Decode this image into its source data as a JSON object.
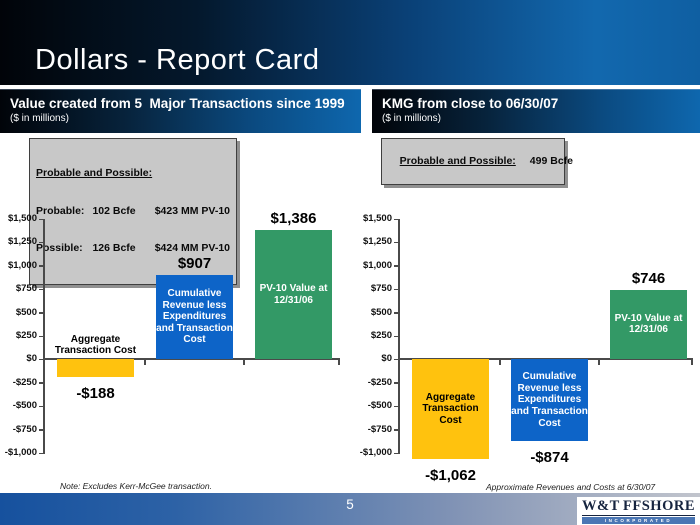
{
  "slide": {
    "title": "Dollars - Report Card",
    "page_number": "5"
  },
  "panels": [
    {
      "header": "Value created from 5  Major Transactions since 1999",
      "subheader": "($ in millions)",
      "info_box": {
        "title": "Probable and Possible:",
        "rows": [
          {
            "name": "Probable:",
            "volume": "102 Bcfe",
            "pv10": "$423 MM PV-10"
          },
          {
            "name": "Possible:",
            "volume": "126 Bcfe",
            "pv10": "$424 MM PV-10"
          }
        ]
      }
    },
    {
      "header": "KMG from close to 06/30/07",
      "subheader": "($ in millions)",
      "info_box": {
        "title": "Probable and Possible:",
        "value": "499 Bcfe"
      }
    }
  ],
  "chart_data": [
    {
      "type": "bar",
      "title": "Value created from 5 Major Transactions since 1999",
      "units": "$ in millions",
      "ylim": [
        -1000,
        1500
      ],
      "ytick_step": 250,
      "ytick_labels": [
        "$1,500",
        "$1,250",
        "$1,000",
        "$750",
        "$500",
        "$250",
        "$0",
        "-$250",
        "-$500",
        "-$750",
        "-$1,000"
      ],
      "grid": false,
      "legend": "none",
      "categories": [
        "Aggregate Transaction Cost",
        "Cumulative Revenue less Expenditures and Transaction Cost",
        "PV-10 Value at 12/31/06"
      ],
      "values": [
        -188,
        907,
        1386
      ],
      "value_labels": [
        "-$188",
        "$907",
        "$1,386"
      ],
      "bar_colors": [
        "#FFC20E",
        "#0D64C8",
        "#339966"
      ],
      "category_label_inside": [
        false,
        true,
        true
      ],
      "category_label_colors": [
        "#000000",
        "#FFFFFF",
        "#FFFFFF"
      ],
      "note": "Note: Excludes Kerr-McGee transaction."
    },
    {
      "type": "bar",
      "title": "KMG from close to 06/30/07",
      "units": "$ in millions",
      "ylim": [
        -1000,
        1500
      ],
      "ytick_step": 250,
      "ytick_labels": [
        "$1,500",
        "$1,250",
        "$1,000",
        "$750",
        "$500",
        "$250",
        "$0",
        "-$250",
        "-$500",
        "-$750",
        "-$1,000"
      ],
      "grid": false,
      "legend": "none",
      "categories": [
        "Aggregate Transaction Cost",
        "Cumulative Revenue less Expenditures and Transaction Cost",
        "PV-10 Value at 12/31/06"
      ],
      "values": [
        -1062,
        -874,
        746
      ],
      "value_labels": [
        "-$1,062",
        "-$874",
        "$746"
      ],
      "bar_colors": [
        "#FFC20E",
        "#0D64C8",
        "#339966"
      ],
      "category_label_inside": [
        true,
        true,
        true
      ],
      "category_label_colors": [
        "#000000",
        "#FFFFFF",
        "#FFFFFF"
      ],
      "note": "Approximate Revenues and Costs at 6/30/07"
    }
  ],
  "logo": {
    "full_name": "W&T OFFSHORE",
    "company_prefix": "W&T",
    "company_suffix": "FFSHORE",
    "incorporated": "INCORPORATED"
  }
}
